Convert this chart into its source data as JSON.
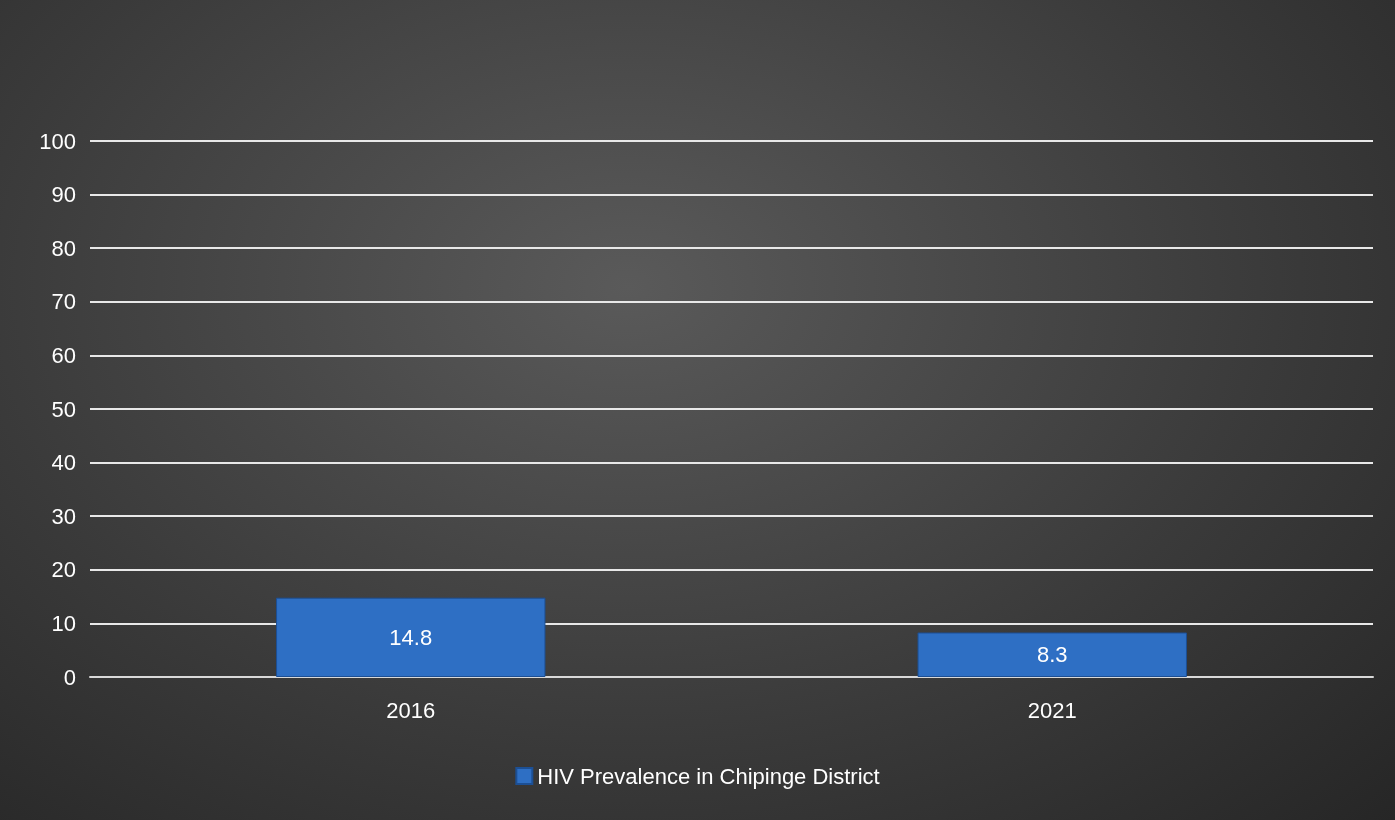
{
  "chart_data": {
    "type": "bar",
    "categories": [
      "2016",
      "2021"
    ],
    "series": [
      {
        "name": "HIV Prevalence in Chipinge District",
        "color": "#2e6fc4",
        "values": [
          14.8,
          8.3
        ]
      }
    ],
    "ylim": [
      0,
      100
    ],
    "yticks": [
      0,
      10,
      20,
      30,
      40,
      50,
      60,
      70,
      80,
      90,
      100
    ],
    "grid": "y",
    "legend": "bottom",
    "data_labels": true
  }
}
